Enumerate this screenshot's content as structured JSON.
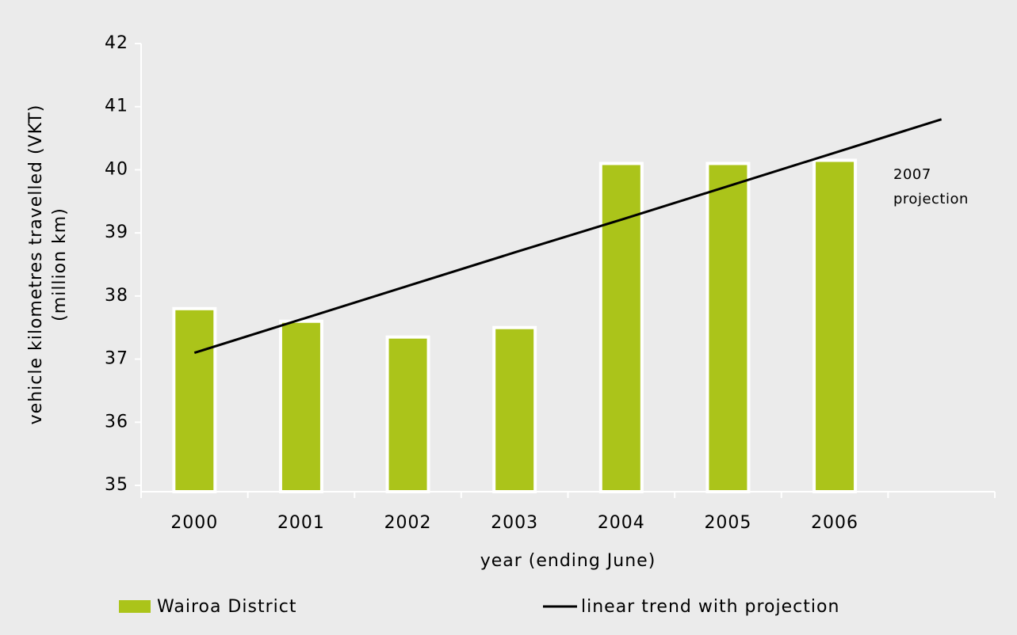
{
  "chart_data": {
    "type": "bar",
    "categories": [
      "2000",
      "2001",
      "2002",
      "2003",
      "2004",
      "2005",
      "2006",
      null
    ],
    "series": [
      {
        "name": "Wairoa District",
        "type": "bar",
        "color": "#abc41a",
        "values": [
          37.8,
          37.6,
          37.35,
          37.5,
          40.1,
          40.1,
          40.15,
          null
        ]
      },
      {
        "name": "linear trend with projection",
        "type": "line",
        "color": "#000000",
        "values": [
          37.1,
          37.63,
          38.16,
          38.69,
          39.21,
          39.74,
          40.27,
          40.8
        ]
      }
    ],
    "xlabel": "year (ending June)",
    "ylabel": [
      "vehicle kilometres travelled (VKT)",
      "(million km)"
    ],
    "annotation": "2007 projection",
    "ylim": [
      35,
      42
    ],
    "yticks": [
      35,
      36,
      37,
      38,
      39,
      40,
      41,
      42
    ],
    "grid": false,
    "legend": "bottom"
  }
}
